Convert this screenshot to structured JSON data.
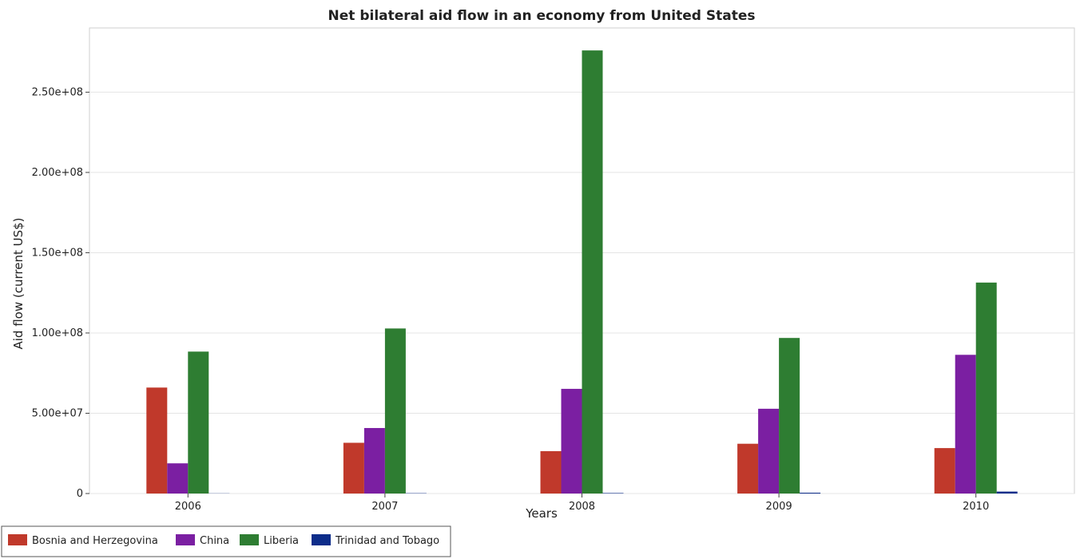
{
  "chart_data": {
    "type": "bar",
    "title": "Net bilateral aid flow in an economy from United States",
    "xlabel": "Years",
    "ylabel": "Aid flow (current US$)",
    "categories": [
      "2006",
      "2007",
      "2008",
      "2009",
      "2010"
    ],
    "ylim": [
      0,
      290000000
    ],
    "yticks": [
      0,
      50000000,
      100000000,
      150000000,
      200000000,
      250000000
    ],
    "ytick_labels": [
      "0",
      "5.00e+07",
      "1.00e+08",
      "1.50e+08",
      "2.00e+08",
      "2.50e+08"
    ],
    "grid": true,
    "legend_position": "bottom-left",
    "series": [
      {
        "name": "Bosnia and Herzegovina",
        "color": "#c0392b",
        "values": [
          66000000,
          31600000,
          26400000,
          31000000,
          28300000
        ]
      },
      {
        "name": "China",
        "color": "#7b1fa2",
        "values": [
          18800000,
          40800000,
          65200000,
          52800000,
          86400000
        ]
      },
      {
        "name": "Liberia",
        "color": "#2e7d32",
        "values": [
          88400000,
          102800000,
          276000000,
          96900000,
          131400000
        ]
      },
      {
        "name": "Trinidad and Tobago",
        "color": "#0d2d8a",
        "values": [
          100000,
          200000,
          300000,
          500000,
          1200000
        ]
      }
    ]
  }
}
